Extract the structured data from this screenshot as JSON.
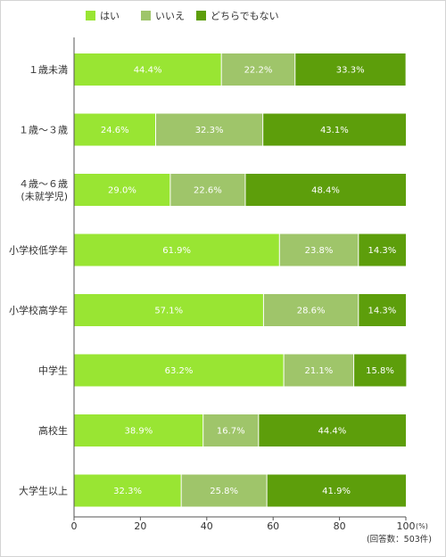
{
  "chart_data": {
    "type": "bar",
    "orientation": "horizontal",
    "stacked": true,
    "categories": [
      [
        "１歳未満"
      ],
      [
        "１歳～３歳"
      ],
      [
        "４歳～６歳",
        "(未就学児)"
      ],
      [
        "小学校低学年"
      ],
      [
        "小学校高学年"
      ],
      [
        "中学生"
      ],
      [
        "高校生"
      ],
      [
        "大学生以上"
      ]
    ],
    "series": [
      {
        "name": "はい",
        "color": "#99e533",
        "values": [
          44.4,
          24.6,
          29.0,
          61.9,
          57.1,
          63.2,
          38.9,
          32.3
        ]
      },
      {
        "name": "いいえ",
        "color": "#9fc56a",
        "values": [
          22.2,
          32.3,
          22.6,
          23.8,
          28.6,
          21.1,
          16.7,
          25.8
        ]
      },
      {
        "name": "どちらでもない",
        "color": "#5d9e0b",
        "values": [
          33.3,
          43.1,
          48.4,
          14.3,
          14.3,
          15.8,
          44.4,
          41.9
        ]
      }
    ],
    "data_labels": [
      [
        "44.4%",
        "24.6%",
        "29.0%",
        "61.9%",
        "57.1%",
        "63.2%",
        "38.9%",
        "32.3%"
      ],
      [
        "22.2%",
        "32.3%",
        "22.6%",
        "23.8%",
        "28.6%",
        "21.1%",
        "16.7%",
        "25.8%"
      ],
      [
        "33.3%",
        "43.1%",
        "48.4%",
        "14.3%",
        "14.3%",
        "15.8%",
        "44.4%",
        "41.9%"
      ]
    ],
    "xlim": [
      0,
      100
    ],
    "xticks": [
      "0",
      "20",
      "40",
      "60",
      "80",
      "100"
    ],
    "x_unit": "(%)",
    "note": "(回答数：503件)",
    "legend_position": "top-left",
    "grid": false,
    "title": "",
    "xlabel": "",
    "ylabel": ""
  }
}
